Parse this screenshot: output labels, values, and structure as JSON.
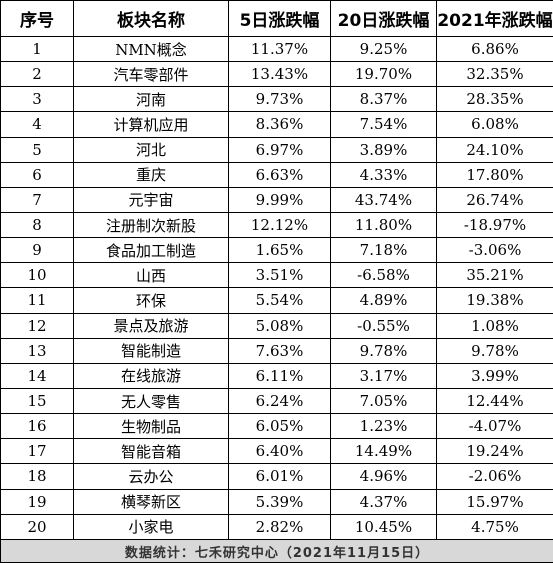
{
  "headers": [
    "序号",
    "板块名称",
    "5日涨跌幅",
    "20日涨跌幅",
    "2021年涨跌幅"
  ],
  "rows": [
    [
      "1",
      "NMN概念",
      "11.37%",
      "9.25%",
      "6.86%"
    ],
    [
      "2",
      "汽车零部件",
      "13.43%",
      "19.70%",
      "32.35%"
    ],
    [
      "3",
      "河南",
      "9.73%",
      "8.37%",
      "28.35%"
    ],
    [
      "4",
      "计算机应用",
      "8.36%",
      "7.54%",
      "6.08%"
    ],
    [
      "5",
      "河北",
      "6.97%",
      "3.89%",
      "24.10%"
    ],
    [
      "6",
      "重庆",
      "6.63%",
      "4.33%",
      "17.80%"
    ],
    [
      "7",
      "元宇宙",
      "9.99%",
      "43.74%",
      "26.74%"
    ],
    [
      "8",
      "注册制次新股",
      "12.12%",
      "11.80%",
      "-18.97%"
    ],
    [
      "9",
      "食品加工制造",
      "1.65%",
      "7.18%",
      "-3.06%"
    ],
    [
      "10",
      "山西",
      "3.51%",
      "-6.58%",
      "35.21%"
    ],
    [
      "11",
      "环保",
      "5.54%",
      "4.89%",
      "19.38%"
    ],
    [
      "12",
      "景点及旅游",
      "5.08%",
      "-0.55%",
      "1.08%"
    ],
    [
      "13",
      "智能制造",
      "7.63%",
      "9.78%",
      "9.78%"
    ],
    [
      "14",
      "在线旅游",
      "6.11%",
      "3.17%",
      "3.99%"
    ],
    [
      "15",
      "无人零售",
      "6.24%",
      "7.05%",
      "12.44%"
    ],
    [
      "16",
      "生物制品",
      "6.05%",
      "1.23%",
      "-4.07%"
    ],
    [
      "17",
      "智能音箱",
      "6.40%",
      "14.49%",
      "19.24%"
    ],
    [
      "18",
      "云办公",
      "6.01%",
      "4.96%",
      "-2.06%"
    ],
    [
      "19",
      "横琴新区",
      "5.39%",
      "4.37%",
      "15.97%"
    ],
    [
      "20",
      "小家电",
      "2.82%",
      "10.45%",
      "4.75%"
    ]
  ],
  "footer": "数据统计：七禾研究中心（2021年11月15日）",
  "colors": {
    "footer_bg": "#d8d8d8",
    "border": "#000000"
  }
}
